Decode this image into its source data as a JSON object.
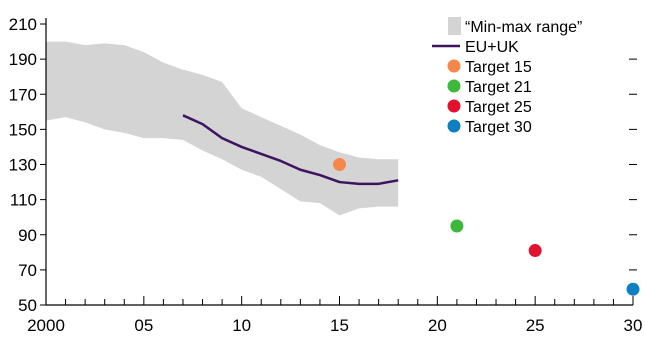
{
  "chart_data": {
    "type": "line",
    "title": "",
    "xlabel": "",
    "ylabel": "",
    "xlim": [
      2000,
      2030
    ],
    "ylim": [
      50,
      210
    ],
    "x_ticks": [
      {
        "value": 2000,
        "label": "2000"
      },
      {
        "value": 2005,
        "label": "05"
      },
      {
        "value": 2010,
        "label": "10"
      },
      {
        "value": 2015,
        "label": "15"
      },
      {
        "value": 2020,
        "label": "20"
      },
      {
        "value": 2025,
        "label": "25"
      },
      {
        "value": 2030,
        "label": "30"
      }
    ],
    "y_ticks": [
      {
        "value": 50,
        "label": "50"
      },
      {
        "value": 70,
        "label": "70"
      },
      {
        "value": 90,
        "label": "90"
      },
      {
        "value": 110,
        "label": "110"
      },
      {
        "value": 130,
        "label": "130"
      },
      {
        "value": 150,
        "label": "150"
      },
      {
        "value": 170,
        "label": "170"
      },
      {
        "value": 190,
        "label": "190"
      },
      {
        "value": 210,
        "label": "210"
      }
    ],
    "range": {
      "name": "“Min-max range”",
      "color": "#d4d4d4",
      "x": [
        2000,
        2001,
        2002,
        2003,
        2004,
        2005,
        2006,
        2007,
        2008,
        2009,
        2010,
        2011,
        2012,
        2013,
        2014,
        2015,
        2016,
        2017,
        2018
      ],
      "lower": [
        155,
        157,
        154,
        150,
        148,
        145,
        145,
        144,
        138,
        133,
        127,
        123,
        116,
        109,
        108,
        101,
        105,
        106,
        106
      ],
      "upper": [
        200,
        200,
        198,
        199,
        198,
        194,
        188,
        184,
        181,
        177,
        162,
        157,
        152,
        147,
        141,
        137,
        134,
        133,
        133
      ]
    },
    "series": [
      {
        "name": "EU+UK",
        "color": "#3d1460",
        "x": [
          2007,
          2008,
          2009,
          2010,
          2011,
          2012,
          2013,
          2014,
          2015,
          2016,
          2017,
          2018
        ],
        "values": [
          158,
          153,
          145,
          140,
          136,
          132,
          127,
          124,
          120,
          119,
          119,
          121
        ]
      }
    ],
    "targets": [
      {
        "name": "Target 15",
        "x": 2015,
        "value": 130,
        "color": "#f7864a"
      },
      {
        "name": "Target 21",
        "x": 2021,
        "value": 95,
        "color": "#3db83a"
      },
      {
        "name": "Target 25",
        "x": 2025,
        "value": 81,
        "color": "#e2122f"
      },
      {
        "name": "Target 30",
        "x": 2030,
        "value": 59,
        "color": "#0f7fc2"
      }
    ],
    "grid": false,
    "legend_position": "top-right"
  }
}
